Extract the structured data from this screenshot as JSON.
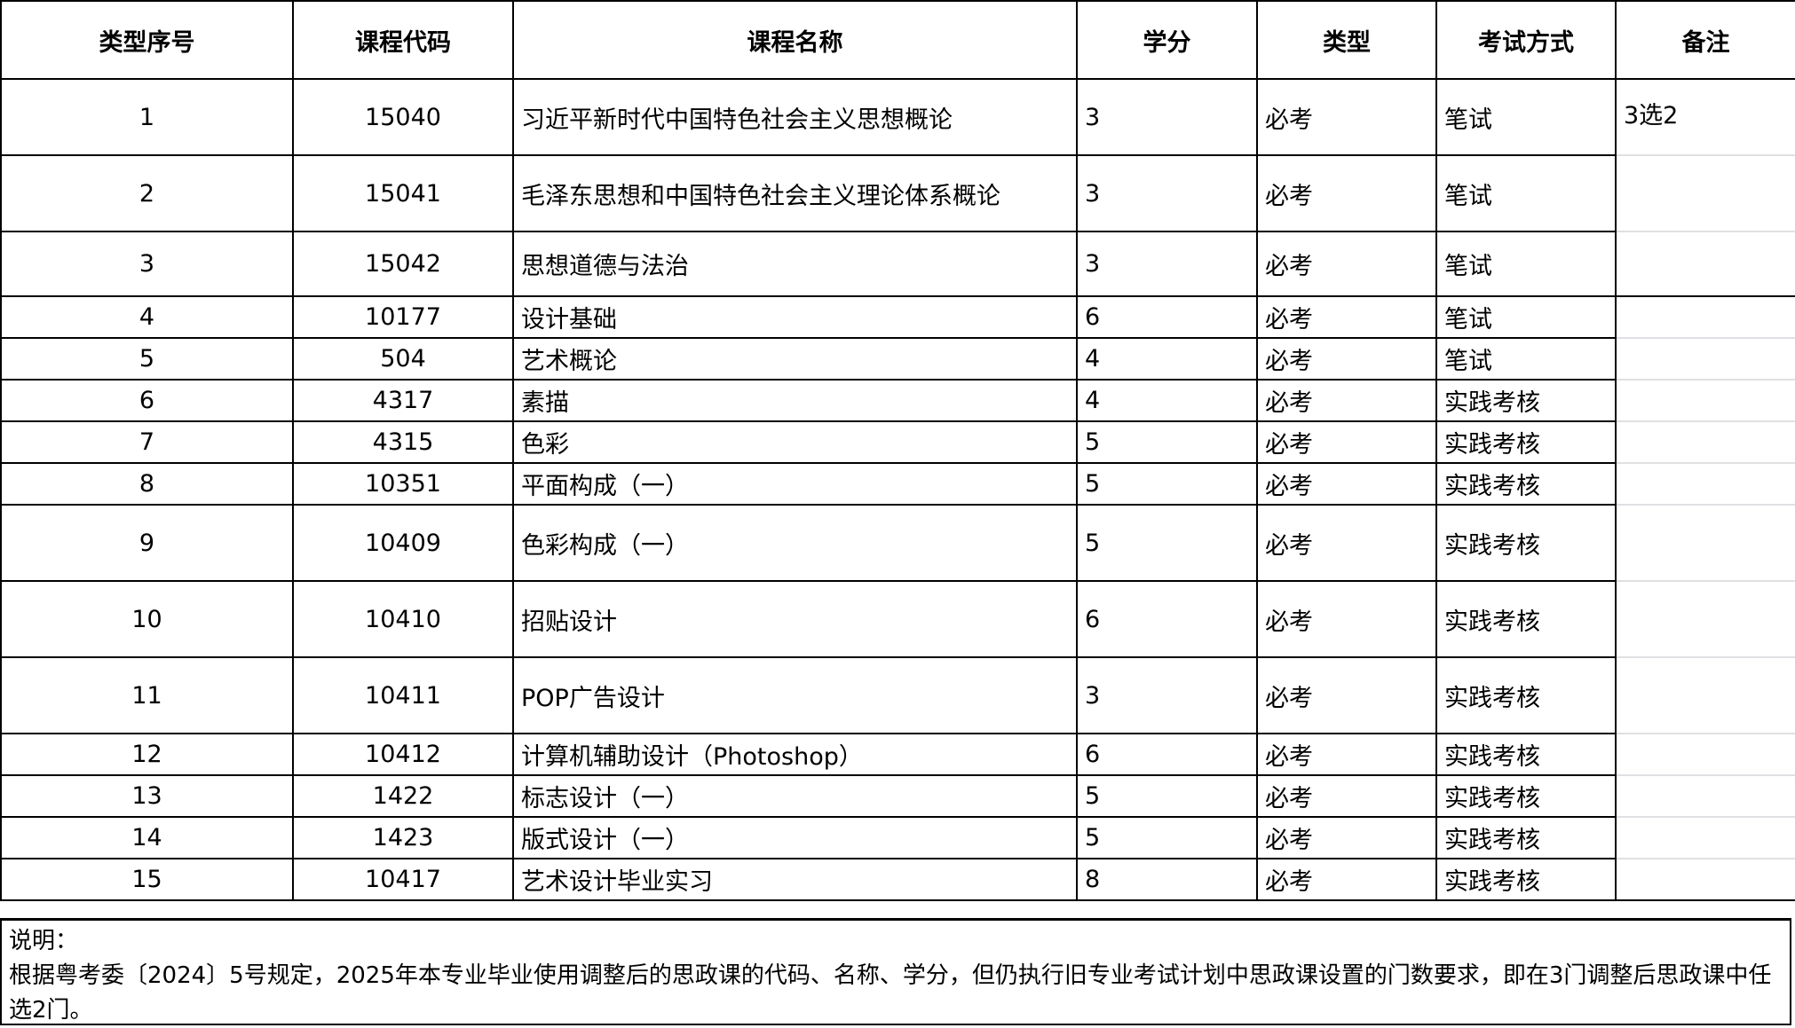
{
  "table": {
    "headers": [
      "类型序号",
      "课程代码",
      "课程名称",
      "学分",
      "类型",
      "考试方式",
      "备注"
    ],
    "rows": [
      {
        "no": "1",
        "code": "15040",
        "name": "习近平新时代中国特色社会主义思想概论",
        "credit": "3",
        "type": "必考",
        "exam": "笔试",
        "note": "3选2"
      },
      {
        "no": "2",
        "code": "15041",
        "name": "毛泽东思想和中国特色社会主义理论体系概论",
        "credit": "3",
        "type": "必考",
        "exam": "笔试",
        "note": ""
      },
      {
        "no": "3",
        "code": "15042",
        "name": "思想道德与法治",
        "credit": "3",
        "type": "必考",
        "exam": "笔试",
        "note": ""
      },
      {
        "no": "4",
        "code": "10177",
        "name": "设计基础",
        "credit": "6",
        "type": "必考",
        "exam": "笔试",
        "note": ""
      },
      {
        "no": "5",
        "code": "504",
        "name": "艺术概论",
        "credit": "4",
        "type": "必考",
        "exam": "笔试",
        "note": ""
      },
      {
        "no": "6",
        "code": "4317",
        "name": "素描",
        "credit": "4",
        "type": "必考",
        "exam": "实践考核",
        "note": ""
      },
      {
        "no": "7",
        "code": "4315",
        "name": "色彩",
        "credit": "5",
        "type": "必考",
        "exam": "实践考核",
        "note": ""
      },
      {
        "no": "8",
        "code": "10351",
        "name": "平面构成（一）",
        "credit": "5",
        "type": "必考",
        "exam": "实践考核",
        "note": ""
      },
      {
        "no": "9",
        "code": "10409",
        "name": "色彩构成（一）",
        "credit": "5",
        "type": "必考",
        "exam": "实践考核",
        "note": ""
      },
      {
        "no": "10",
        "code": "10410",
        "name": "招贴设计",
        "credit": "6",
        "type": "必考",
        "exam": "实践考核",
        "note": ""
      },
      {
        "no": "11",
        "code": "10411",
        "name": "POP广告设计",
        "credit": "3",
        "type": "必考",
        "exam": "实践考核",
        "note": ""
      },
      {
        "no": "12",
        "code": "10412",
        "name": "计算机辅助设计（Photoshop）",
        "credit": "6",
        "type": "必考",
        "exam": "实践考核",
        "note": ""
      },
      {
        "no": "13",
        "code": "1422",
        "name": "标志设计（一）",
        "credit": "5",
        "type": "必考",
        "exam": "实践考核",
        "note": ""
      },
      {
        "no": "14",
        "code": "1423",
        "name": "版式设计（一）",
        "credit": "5",
        "type": "必考",
        "exam": "实践考核",
        "note": ""
      },
      {
        "no": "15",
        "code": "10417",
        "name": "艺术设计毕业实习",
        "credit": "8",
        "type": "必考",
        "exam": "实践考核",
        "note": ""
      }
    ]
  },
  "footnote": {
    "title": "说明：",
    "text": "根据粤考委〔2024〕5号规定，2025年本专业毕业使用调整后的思政课的代码、名称、学分，但仍执行旧专业考试计划中思政课设置的门数要求，即在3门调整后思政课中任选2门。"
  }
}
